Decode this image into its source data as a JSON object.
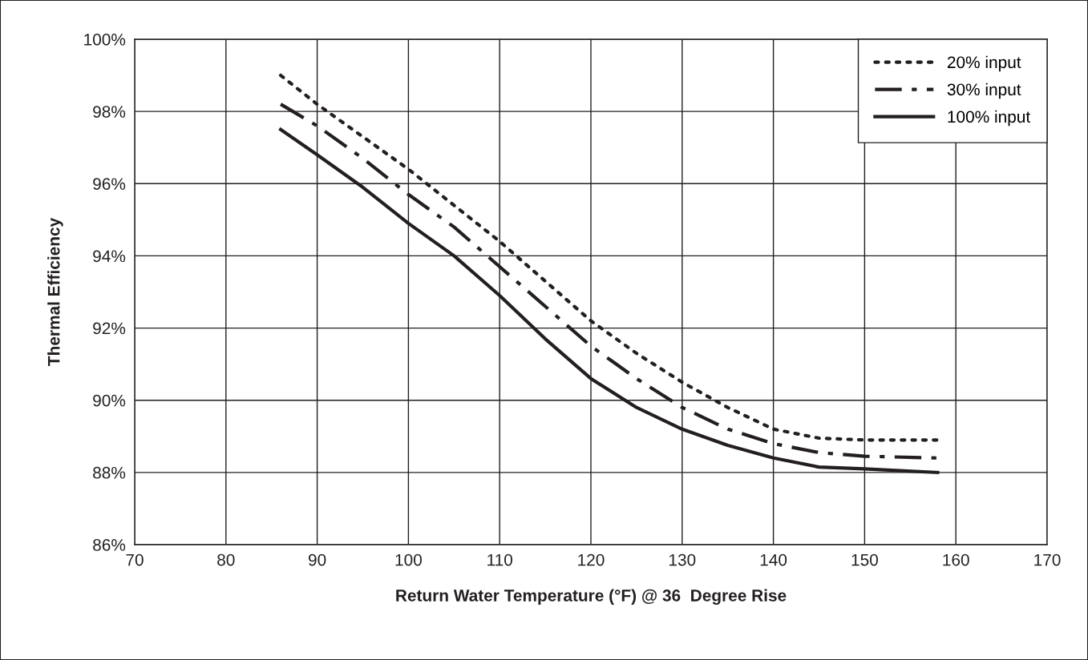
{
  "chart_data": {
    "type": "line",
    "xlabel": "Return Water Temperature (°F) @ 36  Degree Rise",
    "ylabel": "Thermal Efficiency",
    "xlim": [
      70,
      170
    ],
    "xticks": [
      70,
      80,
      90,
      100,
      110,
      120,
      130,
      140,
      150,
      160,
      170
    ],
    "ylim": [
      86,
      100
    ],
    "yticks": [
      {
        "value": 86,
        "label": "86%"
      },
      {
        "value": 88,
        "label": "88%"
      },
      {
        "value": 90,
        "label": "90%"
      },
      {
        "value": 92,
        "label": "92%"
      },
      {
        "value": 94,
        "label": "94%"
      },
      {
        "value": 96,
        "label": "96%"
      },
      {
        "value": 98,
        "label": "98%"
      },
      {
        "value": 100,
        "label": "100%"
      }
    ],
    "grid": true,
    "legend": "top right",
    "series": [
      {
        "name": "20% input",
        "color": "#231f20",
        "line_style": "dotted",
        "x": [
          86,
          90,
          95,
          100,
          105,
          110,
          115,
          120,
          125,
          130,
          135,
          140,
          145,
          150,
          158
        ],
        "values": [
          99.0,
          98.2,
          97.3,
          96.4,
          95.4,
          94.4,
          93.3,
          92.2,
          91.3,
          90.5,
          89.8,
          89.2,
          88.95,
          88.9,
          88.9
        ]
      },
      {
        "name": "30% input",
        "color": "#231f20",
        "line_style": "dashdot",
        "x": [
          86,
          90,
          95,
          100,
          105,
          110,
          115,
          120,
          125,
          130,
          135,
          140,
          145,
          150,
          158
        ],
        "values": [
          98.2,
          97.6,
          96.7,
          95.7,
          94.8,
          93.7,
          92.6,
          91.5,
          90.6,
          89.8,
          89.2,
          88.8,
          88.55,
          88.45,
          88.4
        ]
      },
      {
        "name": "100% input",
        "color": "#231f20",
        "line_style": "solid",
        "x": [
          86,
          90,
          95,
          100,
          105,
          110,
          115,
          120,
          125,
          130,
          135,
          140,
          145,
          150,
          158
        ],
        "values": [
          97.5,
          96.8,
          95.9,
          94.9,
          94.0,
          92.9,
          91.7,
          90.6,
          89.8,
          89.2,
          88.75,
          88.4,
          88.15,
          88.1,
          88.0
        ]
      }
    ]
  }
}
